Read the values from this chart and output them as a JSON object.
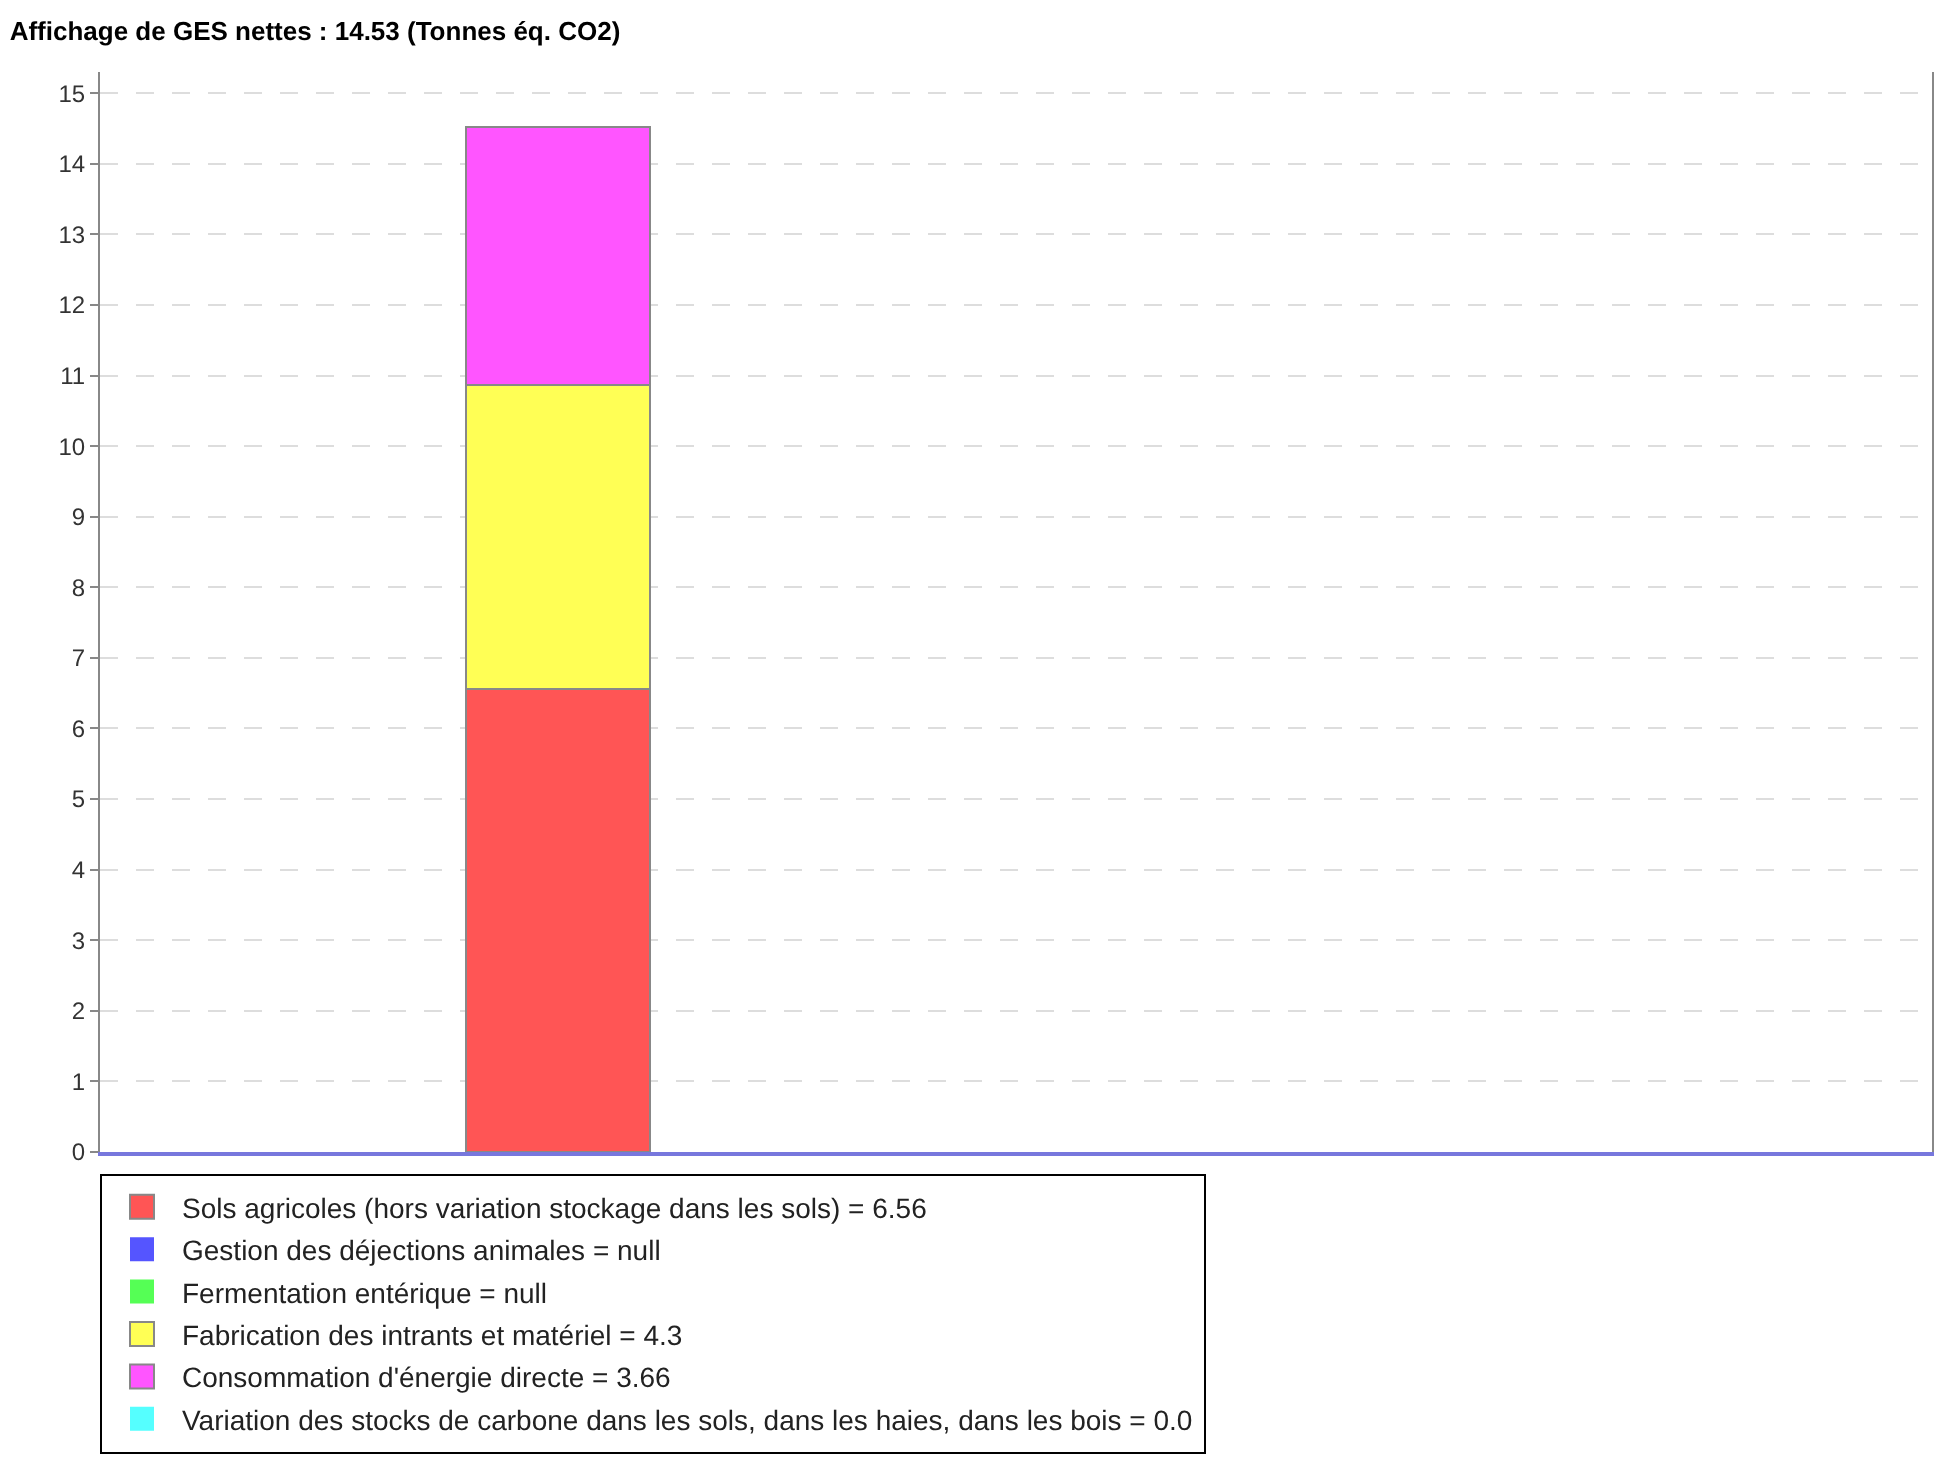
{
  "chart_data": {
    "type": "bar",
    "stacked": true,
    "title": "Affichage de GES nettes : 14.53 (Tonnes éq. CO2)",
    "categories": [
      null,
      null
    ],
    "series": [
      {
        "name": "Sols agricoles (hors variation stockage dans les sols) = 6.56",
        "color": "#ff5555",
        "values": [
          6.56,
          null
        ]
      },
      {
        "name": "Gestion des déjections animales = null",
        "color": "#5555ff",
        "values": [
          null,
          null
        ]
      },
      {
        "name": "Fermentation entérique = null",
        "color": "#55ff55",
        "values": [
          null,
          null
        ]
      },
      {
        "name": "Fabrication des intrants et matériel = 4.3",
        "color": "#ffff55",
        "values": [
          4.3,
          null
        ]
      },
      {
        "name": "Consommation d'énergie directe = 3.66",
        "color": "#ff55ff",
        "values": [
          3.66,
          null
        ]
      },
      {
        "name": "Variation des stocks de carbone dans les sols, dans les haies, dans les bois = 0.0",
        "color": "#55ffff",
        "values": [
          0.0,
          null
        ]
      }
    ],
    "ylim": [
      0,
      15.3
    ],
    "yticks": [
      0,
      1,
      2,
      3,
      4,
      5,
      6,
      7,
      8,
      9,
      10,
      11,
      12,
      13,
      14,
      15
    ],
    "grid": "y",
    "legend": "bottom"
  }
}
